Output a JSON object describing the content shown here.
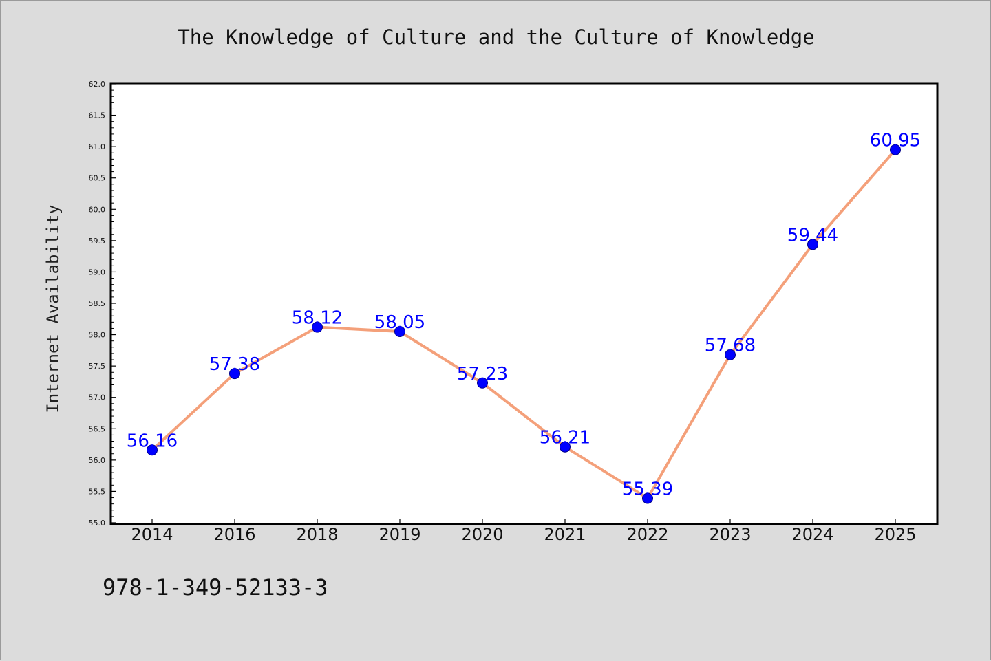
{
  "chart_data": {
    "type": "line",
    "title": "The Knowledge of Culture and the Culture of Knowledge",
    "xlabel": "",
    "ylabel": "Internet Availability",
    "categories": [
      "2014",
      "2016",
      "2018",
      "2019",
      "2020",
      "2021",
      "2022",
      "2023",
      "2024",
      "2025"
    ],
    "series": [
      {
        "values": [
          56.16,
          57.38,
          58.12,
          58.05,
          57.23,
          56.21,
          55.39,
          57.68,
          59.44,
          60.95
        ],
        "data_labels": [
          "56.16",
          "57.38",
          "58.12",
          "58.05",
          "57.23",
          "56.21",
          "55.39",
          "57.68",
          "59.44",
          "60.95"
        ],
        "line_color": "#f4a07a",
        "marker_color": "#0000ff"
      }
    ],
    "ylim": [
      55.0,
      62.0
    ],
    "y_ticks": [
      "55.0",
      "55.5",
      "56.0",
      "56.5",
      "57.0",
      "57.5",
      "58.0",
      "58.5",
      "59.0",
      "59.5",
      "60.0",
      "60.5",
      "61.0",
      "61.5",
      "62.0"
    ],
    "grid": false,
    "legend": "none"
  },
  "footer": {
    "isbn": "978-1-349-52133-3"
  },
  "colors": {
    "background": "#dcdcdc",
    "plot_background": "#ffffff",
    "axis": "#000000",
    "label_text": "#0000ff"
  }
}
